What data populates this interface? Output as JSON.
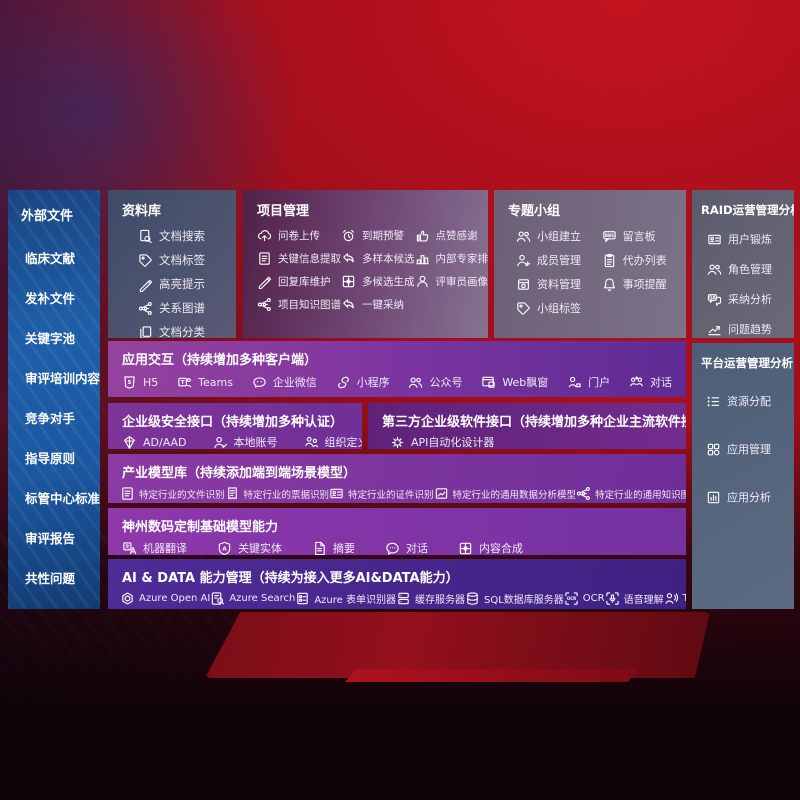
{
  "sidebar": {
    "title": "外部文件",
    "items": [
      "临床文献",
      "发补文件",
      "关键字池",
      "审评培训内容",
      "竞争对手",
      "指导原则",
      "标管中心标准",
      "审评报告",
      "共性问题"
    ]
  },
  "repository": {
    "title": "资料库",
    "items": [
      {
        "icon": "doc-search",
        "label": "文档搜索"
      },
      {
        "icon": "tag",
        "label": "文档标签"
      },
      {
        "icon": "pen",
        "label": "高亮提示"
      },
      {
        "icon": "graph",
        "label": "关系图谱"
      },
      {
        "icon": "docs",
        "label": "文档分类"
      }
    ]
  },
  "project": {
    "title": "项目管理",
    "items": [
      {
        "icon": "cloud-up",
        "label": "问卷上传"
      },
      {
        "icon": "alarm",
        "label": "到期预警"
      },
      {
        "icon": "thumb",
        "label": "点赞感谢"
      },
      {
        "icon": "doc-lines",
        "label": "关键信息提取"
      },
      {
        "icon": "reply",
        "label": "多样本候选"
      },
      {
        "icon": "ranking",
        "label": "内部专家排名"
      },
      {
        "icon": "pen",
        "label": "回复库维护"
      },
      {
        "icon": "grid-plus",
        "label": "多候选生成"
      },
      {
        "icon": "person",
        "label": "评审员画像"
      },
      {
        "icon": "graph",
        "label": "项目知识图谱"
      },
      {
        "icon": "reply",
        "label": "一键采纳"
      }
    ]
  },
  "topic": {
    "title": "专题小组",
    "items": [
      {
        "icon": "people",
        "label": "小组建立"
      },
      {
        "icon": "bbs",
        "label": "留言板"
      },
      {
        "icon": "person-plus",
        "label": "成员管理"
      },
      {
        "icon": "clipboard",
        "label": "代办列表"
      },
      {
        "icon": "archive",
        "label": "资料管理"
      },
      {
        "icon": "bell",
        "label": "事项提醒"
      },
      {
        "icon": "tag",
        "label": "小组标签"
      }
    ]
  },
  "raid": {
    "title": "RAID运营管理分析",
    "items": [
      {
        "icon": "id-card",
        "label": "用户锻炼"
      },
      {
        "icon": "people",
        "label": "角色管理"
      },
      {
        "icon": "qa",
        "label": "采纳分析"
      },
      {
        "icon": "trend",
        "label": "问题趋势"
      }
    ]
  },
  "platform": {
    "title": "平台运营管理分析",
    "items": [
      {
        "icon": "list",
        "label": "资源分配"
      },
      {
        "icon": "app-grid",
        "label": "应用管理"
      },
      {
        "icon": "chart-doc",
        "label": "应用分析"
      }
    ]
  },
  "interaction": {
    "title": "应用交互（持续增加多种客户端）",
    "items": [
      {
        "icon": "html5",
        "label": "H5"
      },
      {
        "icon": "teams",
        "label": "Teams"
      },
      {
        "icon": "wechat",
        "label": "企业微信"
      },
      {
        "icon": "mini",
        "label": "小程序"
      },
      {
        "icon": "people",
        "label": "公众号"
      },
      {
        "icon": "webwin",
        "label": "Web飘窗"
      },
      {
        "icon": "portal",
        "label": "门户"
      },
      {
        "icon": "chat-people",
        "label": "对话"
      }
    ]
  },
  "security": {
    "title": "企业级安全接口（持续增加多种认证）",
    "items": [
      {
        "icon": "shield",
        "label": "AD/AAD"
      },
      {
        "icon": "person-check",
        "label": "本地账号"
      },
      {
        "icon": "org",
        "label": "组织定义"
      }
    ]
  },
  "thirdparty": {
    "title": "第三方企业级软件接口（持续增加多种企业主流软件接口）",
    "items": [
      {
        "icon": "api-gear",
        "label": "API自动化设计器"
      }
    ]
  },
  "industry": {
    "title": "产业模型库（持续添加端到端场景模型）",
    "items": [
      {
        "icon": "doc-lines",
        "label": "特定行业的文件识别"
      },
      {
        "icon": "receipt",
        "label": "特定行业的票据识别"
      },
      {
        "icon": "id-card",
        "label": "特定行业的证件识别"
      },
      {
        "icon": "image-chart",
        "label": "特定行业的通用数据分析模型"
      },
      {
        "icon": "graph",
        "label": "特定行业的通用知识图谱模型"
      }
    ]
  },
  "foundation": {
    "title": "神州数码定制基础模型能力",
    "items": [
      {
        "icon": "translate",
        "label": "机器翻译"
      },
      {
        "icon": "shield-a",
        "label": "关键实体"
      },
      {
        "icon": "doc-fold",
        "label": "摘要"
      },
      {
        "icon": "chat-dots",
        "label": "对话"
      },
      {
        "icon": "grid-plus",
        "label": "内容合成"
      }
    ]
  },
  "aidata": {
    "title": "AI & DATA 能力管理（持续为接入更多AI&DATA能力）",
    "items": [
      {
        "icon": "openai",
        "label": "Azure Open AI"
      },
      {
        "icon": "search-doc",
        "label": "Azure Search"
      },
      {
        "icon": "form",
        "label": "Azure 表单识别器"
      },
      {
        "icon": "cache",
        "label": "缓存服务器"
      },
      {
        "icon": "database",
        "label": "SQL数据库服务器"
      },
      {
        "icon": "ocr",
        "label": "OCR"
      },
      {
        "icon": "speech",
        "label": "语音理解"
      },
      {
        "icon": "tts",
        "label": "TTS"
      }
    ]
  },
  "colors": {
    "background_red": "#a60f1b",
    "sidebar_blue": "#1e5fa8",
    "panel_purple": "#7c35a0",
    "panel_deep_purple": "#4e2c97",
    "panel_slate": "#4d5470",
    "panel_gray": "#6b6977",
    "text": "#ffffff"
  }
}
